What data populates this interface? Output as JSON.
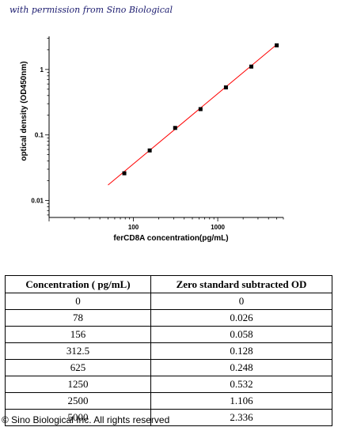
{
  "header": {
    "permission": "with permission from Sino Biological"
  },
  "chart_data": {
    "type": "scatter",
    "xscale": "log",
    "yscale": "log",
    "xlabel": "ferCD8A  concentration(pg/mL)",
    "ylabel": "optical density (OD450nm)",
    "xlim": [
      10,
      6000
    ],
    "ylim": [
      0.0055,
      3.2
    ],
    "xticks": [
      100,
      1000
    ],
    "xtick_labels": [
      "100",
      "1000"
    ],
    "yticks": [
      0.01,
      0.1,
      1
    ],
    "ytick_labels": [
      "0.01",
      "0.1",
      "1"
    ],
    "grid": false,
    "point_color": "#000000",
    "fit_color": "#ff0000",
    "x": [
      78,
      156,
      312.5,
      625,
      1250,
      2500,
      5000
    ],
    "y": [
      0.026,
      0.058,
      0.128,
      0.248,
      0.532,
      1.106,
      2.336
    ],
    "fit_line": {
      "x": [
        50,
        5000
      ],
      "y": [
        0.0172,
        2.4
      ]
    }
  },
  "table": {
    "headers": [
      "Concentration ( pg/mL)",
      "Zero standard subtracted OD"
    ],
    "rows": [
      [
        "0",
        "0"
      ],
      [
        "78",
        "0.026"
      ],
      [
        "156",
        "0.058"
      ],
      [
        "312.5",
        "0.128"
      ],
      [
        "625",
        "0.248"
      ],
      [
        "1250",
        "0.532"
      ],
      [
        "2500",
        "1.106"
      ],
      [
        "5000",
        "2.336"
      ]
    ]
  },
  "footer": {
    "copyright": "© Sino Biological Inc. All rights reserved"
  }
}
